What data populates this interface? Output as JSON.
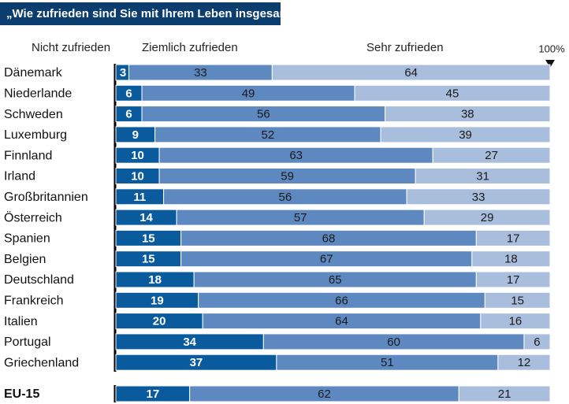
{
  "chart_data": {
    "type": "bar",
    "orientation": "horizontal",
    "stacked": true,
    "title": "„Wie zufrieden sind Sie mit Ihrem Leben insgesamt?“",
    "categories": [
      "Dänemark",
      "Niederlande",
      "Schweden",
      "Luxemburg",
      "Finnland",
      "Irland",
      "Großbritannien",
      "Österreich",
      "Spanien",
      "Belgien",
      "Deutschland",
      "Frankreich",
      "Italien",
      "Portugal",
      "Griechenland",
      "EU-15"
    ],
    "series": [
      {
        "name": "Nicht zufrieden",
        "color": "#0a5b9e",
        "values": [
          3,
          6,
          6,
          9,
          10,
          10,
          11,
          14,
          15,
          15,
          18,
          19,
          20,
          34,
          37,
          17
        ]
      },
      {
        "name": "Ziemlich zufrieden",
        "color": "#5d89c0",
        "values": [
          33,
          49,
          56,
          52,
          63,
          59,
          56,
          57,
          68,
          67,
          65,
          66,
          64,
          60,
          51,
          62
        ]
      },
      {
        "name": "Sehr zufrieden",
        "color": "#a9bddd",
        "values": [
          64,
          45,
          38,
          39,
          27,
          31,
          33,
          29,
          17,
          18,
          17,
          15,
          16,
          6,
          12,
          21
        ]
      }
    ],
    "xlim": [
      0,
      100
    ],
    "xticks": [
      {
        "value": 100,
        "label": "100%"
      }
    ]
  }
}
